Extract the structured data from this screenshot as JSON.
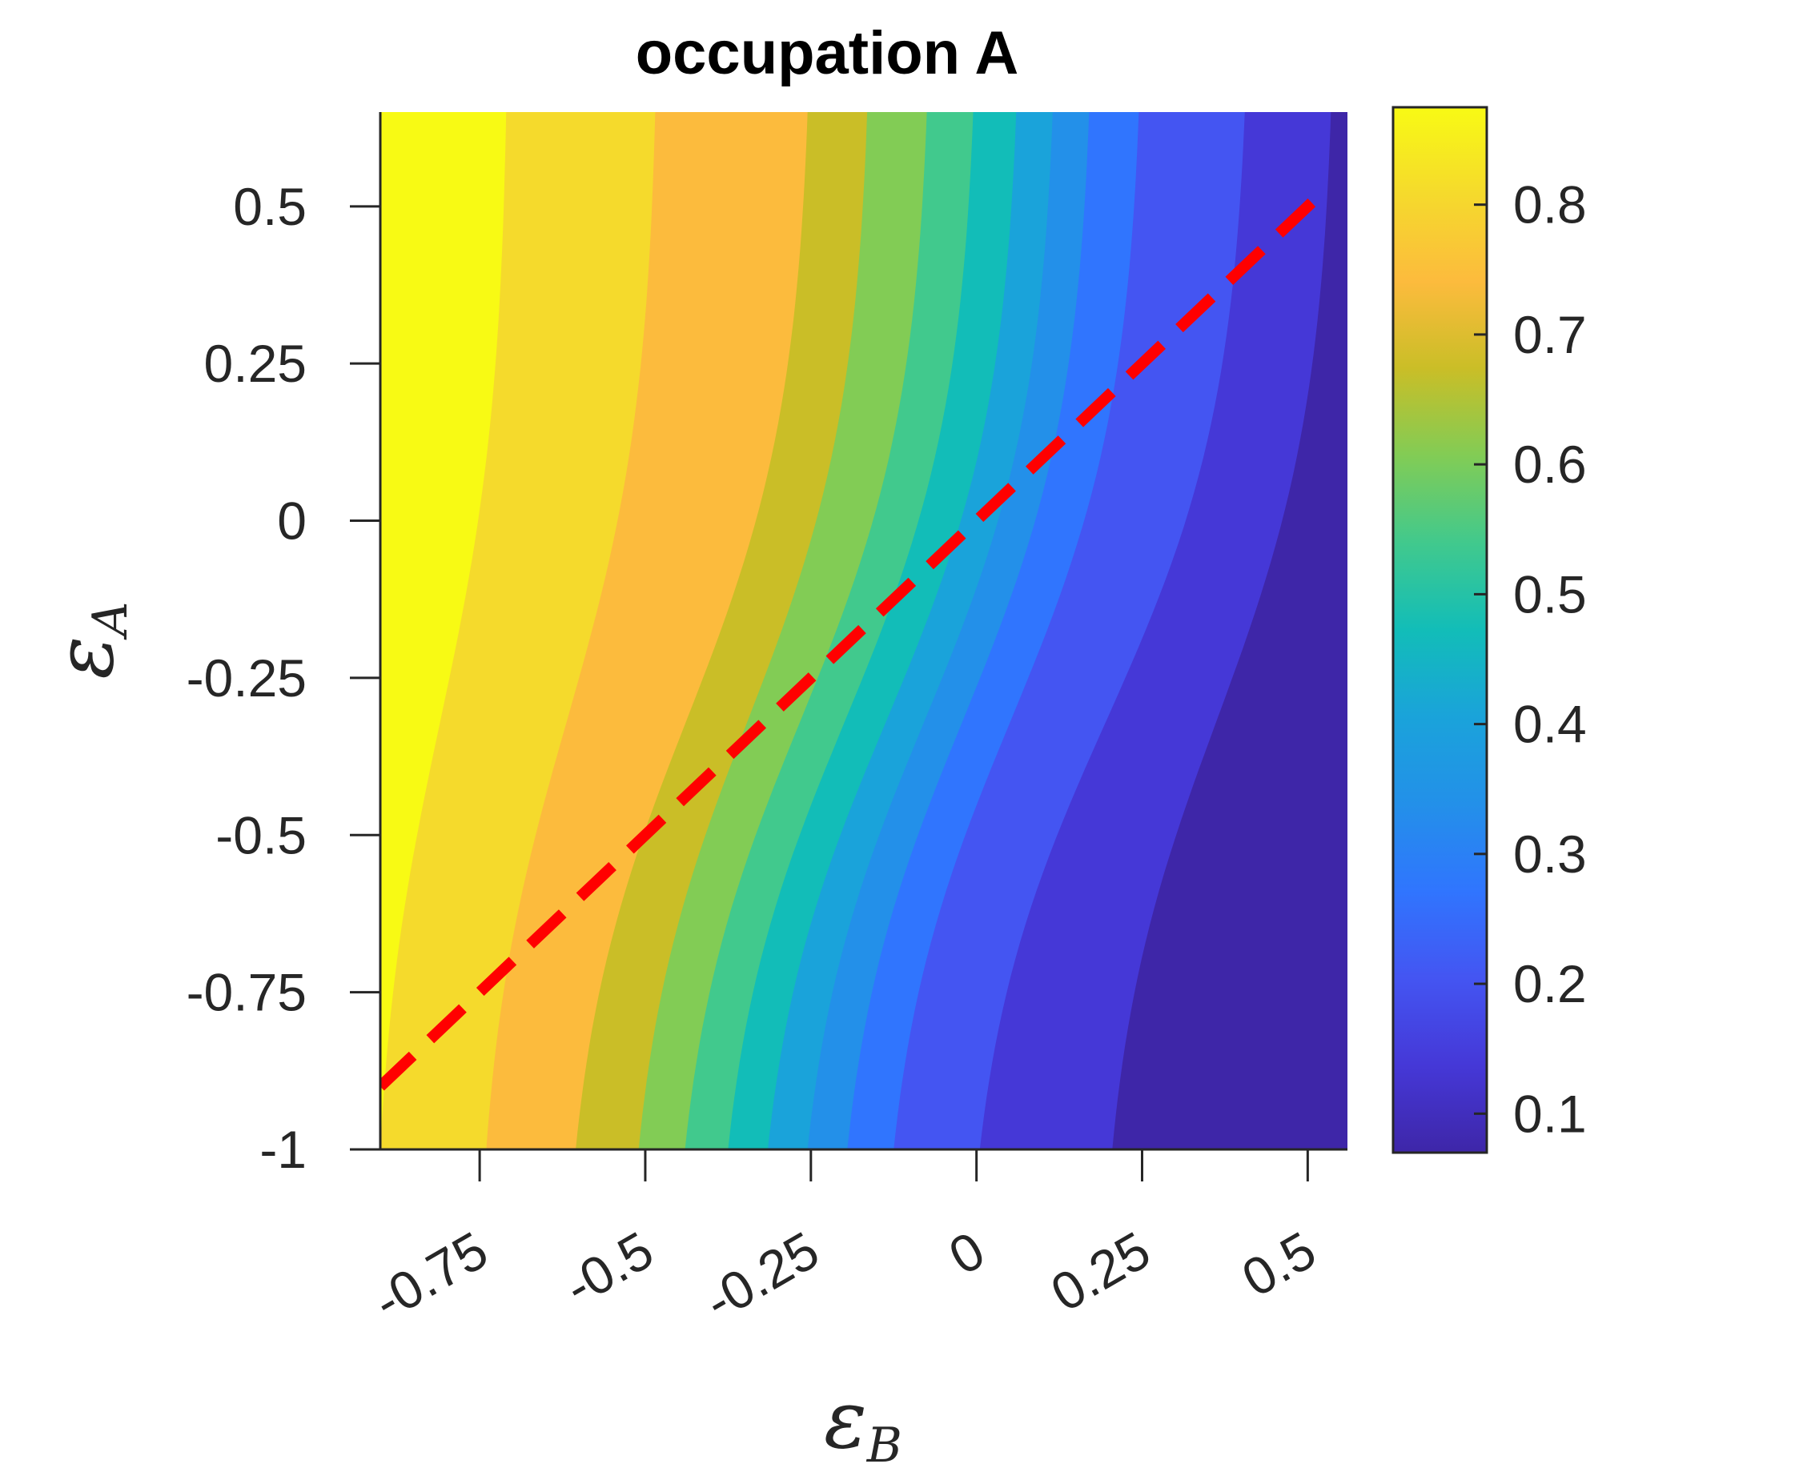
{
  "chart_data": {
    "type": "contour",
    "title": "occupation A",
    "xlabel": {
      "symbol": "ε",
      "subscript": "B"
    },
    "ylabel": {
      "symbol": "ε",
      "subscript": "A"
    },
    "xlim": [
      -0.9,
      0.56
    ],
    "ylim": [
      -1.0,
      0.65
    ],
    "xticks": [
      -0.75,
      -0.5,
      -0.25,
      0,
      0.25,
      0.5
    ],
    "xtick_labels": [
      "-0.75",
      "-0.5",
      "-0.25",
      "0",
      "0.25",
      "0.5"
    ],
    "yticks": [
      -1,
      -0.75,
      -0.5,
      -0.25,
      0,
      0.25,
      0.5
    ],
    "ytick_labels": [
      "-1",
      "-0.75",
      "-0.5",
      "-0.25",
      "0",
      "0.25",
      "0.5"
    ],
    "colorbar": {
      "lim": [
        0.07,
        0.875
      ],
      "ticks": [
        0.1,
        0.2,
        0.3,
        0.4,
        0.5,
        0.6,
        0.7,
        0.8
      ],
      "tick_labels": [
        "0.1",
        "0.2",
        "0.3",
        "0.4",
        "0.5",
        "0.6",
        "0.7",
        "0.8"
      ],
      "colormap": "parula"
    },
    "contour_levels": [
      {
        "fill": "#3e26a8",
        "boundary_x_bottom": -0.9,
        "boundary_x_top": -0.9
      },
      {
        "fill": "#4538d7",
        "boundary_x_bottom": 0.205,
        "boundary_x_top": 0.535
      },
      {
        "fill": "#4455f2",
        "boundary_x_bottom": 0.005,
        "boundary_x_top": 0.405
      },
      {
        "fill": "#3075fe",
        "boundary_x_bottom": -0.125,
        "boundary_x_top": 0.245
      },
      {
        "fill": "#2390e9",
        "boundary_x_bottom": -0.195,
        "boundary_x_top": 0.17
      },
      {
        "fill": "#1aa3da",
        "boundary_x_bottom": -0.255,
        "boundary_x_top": 0.115
      },
      {
        "fill": "#12bdb8",
        "boundary_x_bottom": -0.315,
        "boundary_x_top": 0.06
      },
      {
        "fill": "#41c98d",
        "boundary_x_bottom": -0.375,
        "boundary_x_top": -0.005
      },
      {
        "fill": "#82cc55",
        "boundary_x_bottom": -0.44,
        "boundary_x_top": -0.075
      },
      {
        "fill": "#cabe27",
        "boundary_x_bottom": -0.51,
        "boundary_x_top": -0.165
      },
      {
        "fill": "#fcbb3d",
        "boundary_x_bottom": -0.605,
        "boundary_x_top": -0.255
      },
      {
        "fill": "#f5da2c",
        "boundary_x_bottom": -0.74,
        "boundary_x_top": -0.485
      },
      {
        "fill": "#f8fa14",
        "boundary_x_bottom": -0.9,
        "boundary_x_top": -0.71
      }
    ],
    "dashed_line": {
      "color": "#ff0000",
      "points": [
        [
          -0.9,
          -0.9
        ],
        [
          0.52,
          0.52
        ]
      ]
    }
  }
}
